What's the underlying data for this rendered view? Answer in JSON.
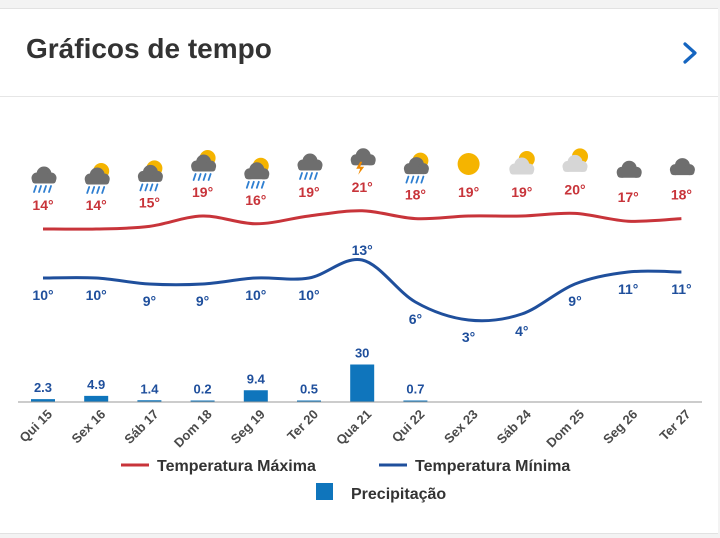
{
  "header": {
    "title": "Gráficos de tempo",
    "chevron_icon": "chevron-right-icon"
  },
  "colors": {
    "max": "#c8343a",
    "min": "#1f4f9c",
    "precip": "#0f75bc",
    "accent": "#1565c0"
  },
  "chart_data": {
    "type": "line",
    "categories": [
      "Qui 15",
      "Sex 16",
      "Sáb 17",
      "Dom 18",
      "Seg 19",
      "Ter 20",
      "Qua 21",
      "Qui 22",
      "Sex 23",
      "Sáb 24",
      "Dom 25",
      "Seg 26",
      "Ter 27"
    ],
    "icons": [
      "rain-cloud-icon",
      "sun-rain-cloud-icon",
      "sun-rain-cloud-icon",
      "sun-rain-cloud-icon",
      "sun-rain-cloud-icon",
      "rain-cloud-icon",
      "thunderstorm-icon",
      "sun-rain-cloud-icon",
      "sun-icon",
      "sun-cloud-icon",
      "sun-cloud-icon",
      "cloud-icon",
      "cloud-icon"
    ],
    "series": [
      {
        "name": "Temperatura Máxima",
        "values": [
          14,
          14,
          15,
          19,
          16,
          19,
          21,
          18,
          19,
          19,
          20,
          17,
          18
        ],
        "labels": [
          "14°",
          "14°",
          "15°",
          "19°",
          "16°",
          "19°",
          "21°",
          "18°",
          "19°",
          "19°",
          "20°",
          "17°",
          "18°"
        ]
      },
      {
        "name": "Temperatura Mínima",
        "values": [
          10,
          10,
          9,
          9,
          10,
          10,
          13,
          6,
          3,
          4,
          9,
          11,
          11
        ],
        "labels": [
          "10°",
          "10°",
          "9°",
          "9°",
          "10°",
          "10°",
          "13°",
          "6°",
          "3°",
          "4°",
          "9°",
          "11°",
          "11°"
        ]
      },
      {
        "name": "Precipitação",
        "type": "bar",
        "values": [
          2.3,
          4.9,
          1.4,
          0.2,
          9.4,
          0.5,
          30,
          0.7,
          0,
          0,
          0,
          0,
          0
        ],
        "labels": [
          "2.3",
          "4.9",
          "1.4",
          "0.2",
          "9.4",
          "0.5",
          "30",
          "0.7",
          "",
          "",
          "",
          "",
          ""
        ]
      }
    ],
    "legend": [
      "Temperatura Máxima",
      "Temperatura Mínima",
      "Precipitação"
    ],
    "legend_position": "bottom",
    "grid": false
  }
}
